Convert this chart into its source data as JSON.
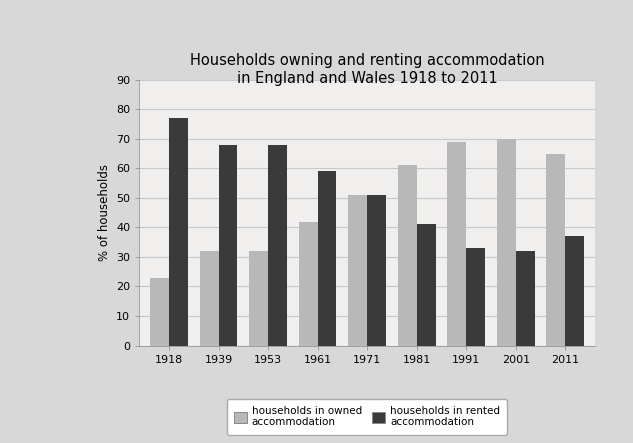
{
  "title": "Households owning and renting accommodation\nin England and Wales 1918 to 2011",
  "years": [
    "1918",
    "1939",
    "1953",
    "1961",
    "1971",
    "1981",
    "1991",
    "2001",
    "2011"
  ],
  "owned": [
    23,
    32,
    32,
    42,
    51,
    61,
    69,
    70,
    65
  ],
  "rented": [
    77,
    68,
    68,
    59,
    51,
    41,
    33,
    32,
    37
  ],
  "owned_color": "#b8b8b8",
  "rented_color": "#3a3a3a",
  "ylabel": "% of households",
  "ylim": [
    0,
    90
  ],
  "yticks": [
    0,
    10,
    20,
    30,
    40,
    50,
    60,
    70,
    80,
    90
  ],
  "legend_owned": "households in owned\naccommodation",
  "legend_rented": "households in rented\naccommodation",
  "fig_facecolor": "#d8d8d8",
  "plot_facecolor": "#f0efee",
  "bar_width": 0.38,
  "title_fontsize": 10.5,
  "axis_fontsize": 8.5,
  "tick_fontsize": 8,
  "legend_fontsize": 7.5,
  "grid_color": "#c8c8c8"
}
